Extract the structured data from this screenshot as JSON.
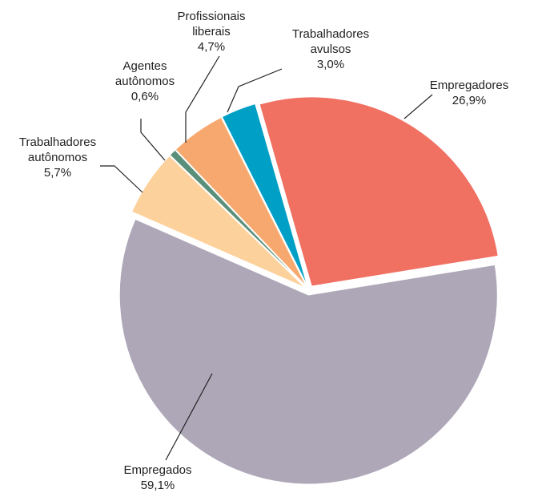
{
  "chart_data": {
    "type": "pie",
    "categories": [
      "Empregadores",
      "Empregados",
      "Trabalhadores\nautônomos",
      "Agentes\nautônomos",
      "Profissionais\nliberais",
      "Trabalhadores\navulsos"
    ],
    "values": [
      26.9,
      59.1,
      5.7,
      0.6,
      4.7,
      3.0
    ],
    "value_labels": [
      "26,9%",
      "59,1%",
      "5,7%",
      "0,6%",
      "4,7%",
      "3,0%"
    ],
    "colors": [
      "#f07062",
      "#aea7b8",
      "#fdd19b",
      "#5a8f7a",
      "#f6a86e",
      "#00a0c6"
    ]
  }
}
